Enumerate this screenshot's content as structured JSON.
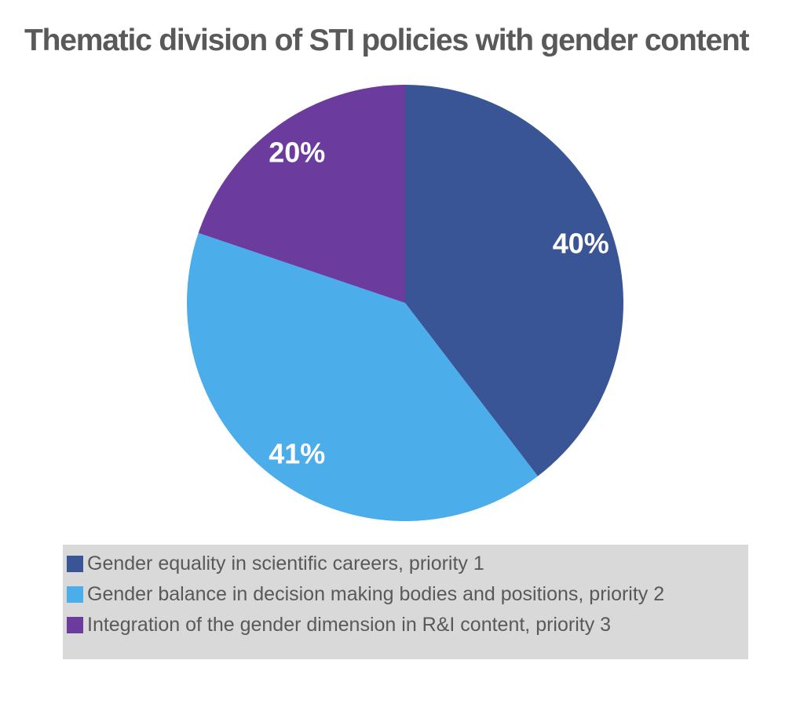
{
  "chart_data": {
    "type": "pie",
    "title": "Thematic division of STI policies with gender content",
    "labels": [
      "Gender equality in scientific careers, priority 1",
      "Gender balance in decision making bodies and positions, priority 2",
      "Integration of the gender dimension in R&I content, priority 3"
    ],
    "values": [
      40,
      41,
      20
    ],
    "value_labels": [
      "40%",
      "41%",
      "20%"
    ],
    "colors": [
      "#3A5596",
      "#4BADEA",
      "#6B3B9E"
    ],
    "start_angle_deg": 0,
    "direction": "clockwise",
    "label_color": "#FFFFFF",
    "label_radius_fraction": 0.85,
    "legend_position": "bottom",
    "legend_background": "#D9D9D9",
    "text_color": "#595959",
    "grid": false
  }
}
